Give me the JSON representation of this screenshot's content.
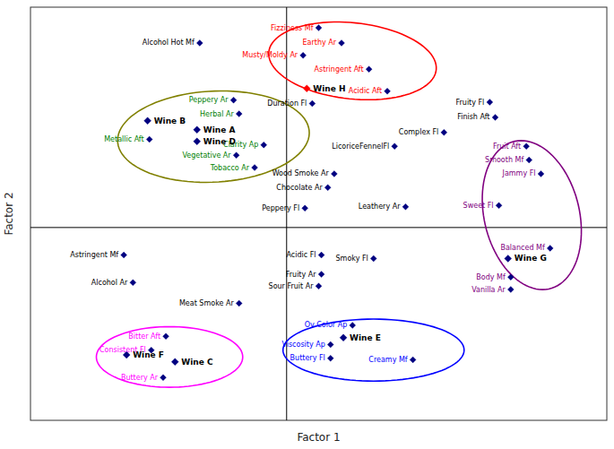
{
  "chart_data": {
    "type": "scatter",
    "xlabel": "Factor 1",
    "ylabel": "Factor 2",
    "xlim": [
      -2.8,
      3.5
    ],
    "ylim": [
      -2.8,
      3.2
    ],
    "xticks": [
      0
    ],
    "yticks": [
      0
    ],
    "grid": true,
    "tick_labels": false,
    "background_color": "#ffffff",
    "series": [
      {
        "color": "navy",
        "marker": "diamond",
        "labels": [
          "Fizziness Mf",
          "Earthy Ar",
          "Musty/Moldy Ar",
          "Astringent Aft",
          "Acidic Aft",
          "Peppery Ar",
          "Herbal Ar",
          "Metallic Aft",
          "Clarity Ap",
          "Vegetative Ar",
          "Tobacco Ar",
          "Duration Fl",
          "Fruity Fl",
          "Finish Aft",
          "Complex Fl",
          "LicoriceFennelFl",
          "Wood Smoke Ar",
          "Chocolate Ar",
          "Leathery Ar",
          "Peppery Fl",
          "Acidic Fl",
          "Smoky Fl",
          "Fruity Ar",
          "Sour Fruit Ar",
          "Astringent Mf",
          "Alcohol Ar",
          "Meat Smoke Ar",
          "Ov Color Ap",
          "Viscosity Ap",
          "Buttery Fl",
          "Creamy Mf",
          "Bitter Aft",
          "Consistent Fl",
          "Buttery Ar",
          "Fruit Aft",
          "Smooth Mf",
          "Jammy Fl",
          "Sweet Fl",
          "Balanced Mf",
          "Body Mf",
          "Vanilla Ar",
          "Alcohol Hot Mf"
        ],
        "x": [
          0.35,
          0.6,
          0.18,
          0.9,
          1.1,
          -0.58,
          -0.52,
          -1.5,
          -0.25,
          -0.55,
          -0.35,
          0.28,
          2.22,
          2.28,
          1.72,
          1.18,
          0.52,
          0.45,
          1.3,
          0.2,
          0.38,
          0.95,
          0.38,
          0.35,
          -1.78,
          -1.68,
          -0.52,
          0.72,
          0.48,
          0.48,
          1.38,
          -1.32,
          -1.48,
          -1.35,
          2.62,
          2.65,
          2.78,
          2.32,
          2.88,
          2.45,
          2.45,
          -0.95
        ],
        "values": [
          2.9,
          2.68,
          2.5,
          2.3,
          1.98,
          1.85,
          1.65,
          1.28,
          1.2,
          1.05,
          0.87,
          1.8,
          1.82,
          1.6,
          1.38,
          1.18,
          0.78,
          0.58,
          0.3,
          0.28,
          -0.4,
          -0.45,
          -0.68,
          -0.85,
          -0.4,
          -0.8,
          -1.1,
          -1.42,
          -1.7,
          -1.9,
          -1.92,
          -1.58,
          -1.78,
          -2.18,
          1.18,
          0.98,
          0.78,
          0.32,
          -0.3,
          -0.72,
          -0.9,
          2.68
        ],
        "label_colors": [
          "red",
          "red",
          "red",
          "red",
          "red",
          "green",
          "green",
          "green",
          "green",
          "green",
          "green",
          "black",
          "black",
          "black",
          "black",
          "black",
          "black",
          "black",
          "black",
          "black",
          "black",
          "black",
          "black",
          "black",
          "black",
          "black",
          "black",
          "blue",
          "blue",
          "blue",
          "blue",
          "magenta",
          "magenta",
          "magenta",
          "purple",
          "purple",
          "purple",
          "purple",
          "purple",
          "purple",
          "purple",
          "black"
        ]
      },
      {
        "marker": "diamond",
        "labels": [
          "Wine H",
          "Wine B",
          "Wine A",
          "Wine D",
          "Wine E",
          "Wine F",
          "Wine C",
          "Wine G"
        ],
        "x": [
          0.22,
          -1.52,
          -0.98,
          -0.98,
          0.62,
          -1.75,
          -1.22,
          2.42
        ],
        "values": [
          2.02,
          1.55,
          1.42,
          1.25,
          -1.6,
          -1.85,
          -1.95,
          -0.45
        ],
        "colors": [
          "red",
          "navy",
          "navy",
          "navy",
          "navy",
          "navy",
          "navy",
          "navy"
        ],
        "label_color": "black"
      }
    ],
    "ellipses": [
      {
        "cx": 0.72,
        "cy": 2.42,
        "width": 1.85,
        "height": 1.1,
        "angle": -10,
        "color": "red"
      },
      {
        "cx": -0.8,
        "cy": 1.32,
        "width": 2.1,
        "height": 1.32,
        "angle": 5,
        "color": "olive"
      },
      {
        "cx": -1.28,
        "cy": -1.88,
        "width": 1.6,
        "height": 0.88,
        "angle": 0,
        "color": "magenta"
      },
      {
        "cx": 0.95,
        "cy": -1.78,
        "width": 1.98,
        "height": 0.9,
        "angle": 0,
        "color": "blue"
      },
      {
        "cx": 2.68,
        "cy": 0.18,
        "width": 1.05,
        "height": 2.18,
        "angle": 8,
        "color": "purple"
      }
    ]
  }
}
